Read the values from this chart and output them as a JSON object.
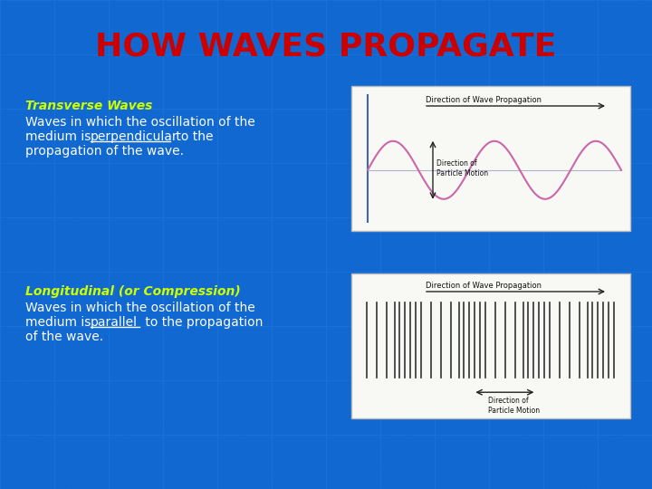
{
  "title": "HOW WAVES PROPAGATE",
  "title_color": "#cc0000",
  "title_fontsize": 26,
  "bg_color": "#1068d0",
  "grid_color": "#2080e8",
  "transverse_title": "Transverse Waves",
  "transverse_title_color": "#ccff00",
  "transverse_color": "#ffffff",
  "longitudinal_title": "Longitudinal (or Compression)",
  "longitudinal_title_color": "#ccff00",
  "longitudinal_color": "#ffffff",
  "wave_box_bg": "#f8f8f5",
  "wave_line_color": "#cc66aa",
  "wave_center_color": "#aaaacc",
  "wave_arrow_color": "#222222",
  "comp_box_bg": "#f8f8f5",
  "comp_line_color": "#333333"
}
